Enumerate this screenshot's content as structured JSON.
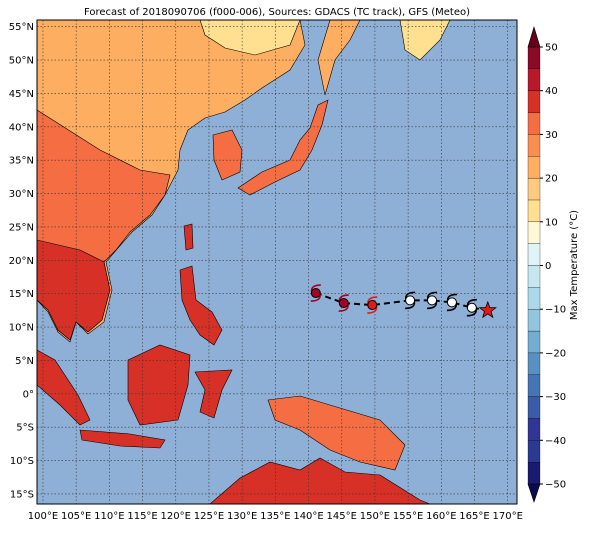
{
  "map": {
    "title": "Forecast of 2018090706 (f000-006), Sources: GDACS (TC track), GFS (Meteo)",
    "xlim": [
      99.1,
      171.4
    ],
    "ylim": [
      -16.5,
      56
    ],
    "xticks": [
      {
        "value": 100,
        "label": "100°E"
      },
      {
        "value": 105,
        "label": "105°E"
      },
      {
        "value": 110,
        "label": "110°E"
      },
      {
        "value": 115,
        "label": "115°E"
      },
      {
        "value": 120,
        "label": "120°E"
      },
      {
        "value": 125,
        "label": "125°E"
      },
      {
        "value": 130,
        "label": "130°E"
      },
      {
        "value": 135,
        "label": "135°E"
      },
      {
        "value": 140,
        "label": "140°E"
      },
      {
        "value": 145,
        "label": "145°E"
      },
      {
        "value": 150,
        "label": "150°E"
      },
      {
        "value": 155,
        "label": "155°E"
      },
      {
        "value": 160,
        "label": "160°E"
      },
      {
        "value": 165,
        "label": "165°E"
      },
      {
        "value": 170,
        "label": "170°E"
      }
    ],
    "yticks": [
      {
        "value": 55,
        "label": "55°N"
      },
      {
        "value": 50,
        "label": "50°N"
      },
      {
        "value": 45,
        "label": "45°N"
      },
      {
        "value": 40,
        "label": "40°N"
      },
      {
        "value": 35,
        "label": "35°N"
      },
      {
        "value": 30,
        "label": "30°N"
      },
      {
        "value": 25,
        "label": "25°N"
      },
      {
        "value": 20,
        "label": "20°N"
      },
      {
        "value": 15,
        "label": "15°N"
      },
      {
        "value": 10,
        "label": "10°N"
      },
      {
        "value": 5,
        "label": "5°N"
      },
      {
        "value": 0,
        "label": "0°"
      },
      {
        "value": -5,
        "label": "5°S"
      },
      {
        "value": -10,
        "label": "10°S"
      },
      {
        "value": -15,
        "label": "15°S"
      }
    ],
    "grid": true,
    "track": {
      "lon": [
        141.1,
        145.3,
        149.6,
        155.3,
        158.6,
        161.6,
        164.6,
        167.0
      ],
      "lat": [
        15.1,
        13.6,
        13.3,
        14.0,
        14.0,
        13.7,
        12.9,
        12.5
      ],
      "colors": [
        "#a50026",
        "#a50026",
        "#e31a1c",
        "#ffffff",
        "#ffffff",
        "#ffffff",
        "#ffffff",
        "#e31a1c"
      ]
    },
    "colorbar": {
      "label": "Max Temperature (°C)",
      "lim": [
        -50,
        50
      ],
      "ticks": [
        50,
        40,
        30,
        20,
        10,
        0,
        {
          "value": -10,
          "label": "−10"
        },
        {
          "value": -20,
          "label": "−20"
        },
        {
          "value": -30,
          "label": "−30"
        },
        {
          "value": -40,
          "label": "−40"
        },
        {
          "value": -50,
          "label": "−50"
        }
      ],
      "colors": [
        "#1a1a6e",
        "#2b3990",
        "#313695",
        "#3a5ba8",
        "#4575b4",
        "#5a8fc2",
        "#74add1",
        "#92c5de",
        "#abd9e9",
        "#c6e6f0",
        "#e0f3f8",
        "#fff7d6",
        "#fee090",
        "#fec980",
        "#fdae61",
        "#f98e52",
        "#f46d43",
        "#d73027",
        "#b8182a",
        "#8b0a26"
      ],
      "under": "#0a0a50",
      "over": "#67001f"
    }
  }
}
